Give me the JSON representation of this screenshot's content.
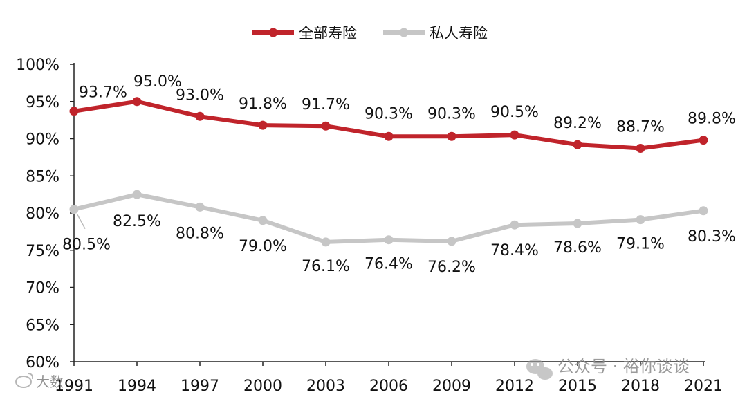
{
  "chart_data": {
    "type": "line",
    "categories": [
      "1991",
      "1994",
      "1997",
      "2000",
      "2003",
      "2006",
      "2009",
      "2012",
      "2015",
      "2018",
      "2021"
    ],
    "series": [
      {
        "name": "全部寿险",
        "color": "#c0242b",
        "values": [
          93.7,
          95.0,
          93.0,
          91.8,
          91.7,
          90.3,
          90.3,
          90.5,
          89.2,
          88.7,
          89.8
        ],
        "labels": [
          "93.7%",
          "95.0%",
          "93.0%",
          "91.8%",
          "91.7%",
          "90.3%",
          "90.3%",
          "90.5%",
          "89.2%",
          "88.7%",
          "89.8%"
        ]
      },
      {
        "name": "私人寿险",
        "color": "#c6c6c6",
        "values": [
          80.5,
          82.5,
          80.8,
          79.0,
          76.1,
          76.4,
          76.2,
          78.4,
          78.6,
          79.1,
          80.3
        ],
        "labels": [
          "80.5%",
          "82.5%",
          "80.8%",
          "79.0%",
          "76.1%",
          "76.4%",
          "76.2%",
          "78.4%",
          "78.6%",
          "79.1%",
          "80.3%"
        ]
      }
    ],
    "title": "",
    "xlabel": "",
    "ylabel": "",
    "ylim": [
      60,
      100
    ],
    "yticks": [
      60,
      65,
      70,
      75,
      80,
      85,
      90,
      95,
      100
    ],
    "ytick_labels": [
      "60%",
      "65%",
      "70%",
      "75%",
      "80%",
      "85%",
      "90%",
      "95%",
      "100%"
    ],
    "grid": false,
    "legend_position": "top-center"
  },
  "watermark": {
    "text": "公众号 · 裕你谈谈",
    "icon": "wechat-icon"
  },
  "watermark_left": {
    "text": "大数",
    "icon": "weibo-icon"
  }
}
